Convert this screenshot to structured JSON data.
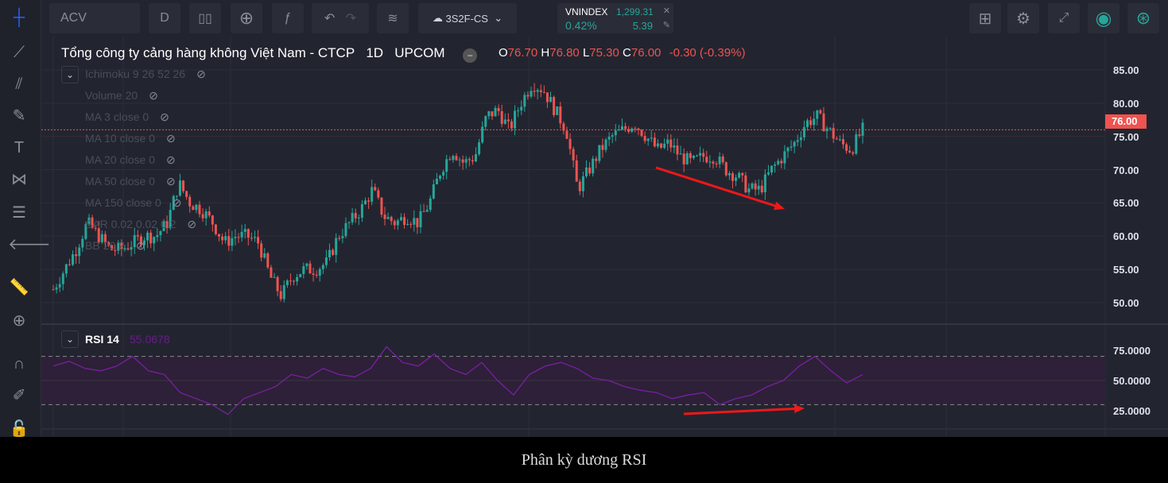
{
  "toolbar": {
    "symbol": "ACV",
    "interval": "D",
    "layout_name": "3S2F-CS"
  },
  "index_widget": {
    "name": "VNINDEX",
    "value": "1,299.31",
    "change_pct": "0.42%",
    "change": "5.39"
  },
  "header": {
    "title": "Tổng công ty cảng hàng không Việt Nam - CTCP",
    "interval": "1D",
    "exchange": "UPCOM",
    "o_label": "O",
    "o": "76.70",
    "h_label": "H",
    "h": "76.80",
    "l_label": "L",
    "l": "75.30",
    "c_label": "C",
    "c": "76.00",
    "change": "-0.30 (-0.39%)"
  },
  "indicators": [
    "Ichimoku 9 26 52 26",
    "Volume 20",
    "MA 3 close 0",
    "MA 10 close 0",
    "MA 20 close 0",
    "MA 50 close 0",
    "MA 150 close 0",
    "SAR 0.02 0.02 0.2",
    "BB 20 2"
  ],
  "rsi": {
    "label": "RSI 14",
    "value": "55.0678"
  },
  "price_axis": [
    "85.00",
    "80.00",
    "75.00",
    "70.00",
    "65.00",
    "60.00",
    "55.00",
    "50.00"
  ],
  "last_price": "76.00",
  "rsi_axis": [
    "75.0000",
    "50.0000",
    "25.0000"
  ],
  "caption": "Phân kỳ dương RSI",
  "colors": {
    "up": "#26a69a",
    "down": "#ef5350",
    "rsi": "#7b1fa2",
    "bg": "#222530"
  },
  "chart_data": {
    "type": "candlestick",
    "ylim": [
      48,
      87
    ],
    "close": [
      52,
      55,
      58,
      62,
      60,
      58,
      58,
      59,
      60,
      60,
      62,
      68,
      65,
      64,
      62,
      59,
      60,
      60,
      59,
      54,
      51,
      54,
      55,
      55,
      56,
      60,
      62,
      64,
      67,
      63,
      62,
      63,
      62,
      65,
      70,
      73,
      71,
      72,
      78,
      79,
      76,
      80,
      83,
      82,
      79,
      76,
      67,
      70,
      73,
      75,
      76,
      77,
      75,
      73,
      74,
      72,
      71,
      72,
      72,
      70,
      69,
      67,
      67,
      70,
      72,
      74,
      77,
      78,
      76,
      74,
      73,
      76
    ],
    "rsi_values": [
      62,
      66,
      60,
      58,
      62,
      70,
      58,
      55,
      40,
      35,
      30,
      22,
      35,
      40,
      45,
      55,
      52,
      60,
      55,
      53,
      60,
      78,
      65,
      62,
      72,
      60,
      55,
      65,
      50,
      38,
      55,
      62,
      65,
      60,
      52,
      50,
      45,
      42,
      40,
      35,
      38,
      40,
      30,
      35,
      38,
      45,
      50,
      62,
      70,
      58,
      48,
      55
    ],
    "rsi_ylim": [
      15,
      85
    ],
    "rsi_bands": [
      30,
      70
    ]
  }
}
